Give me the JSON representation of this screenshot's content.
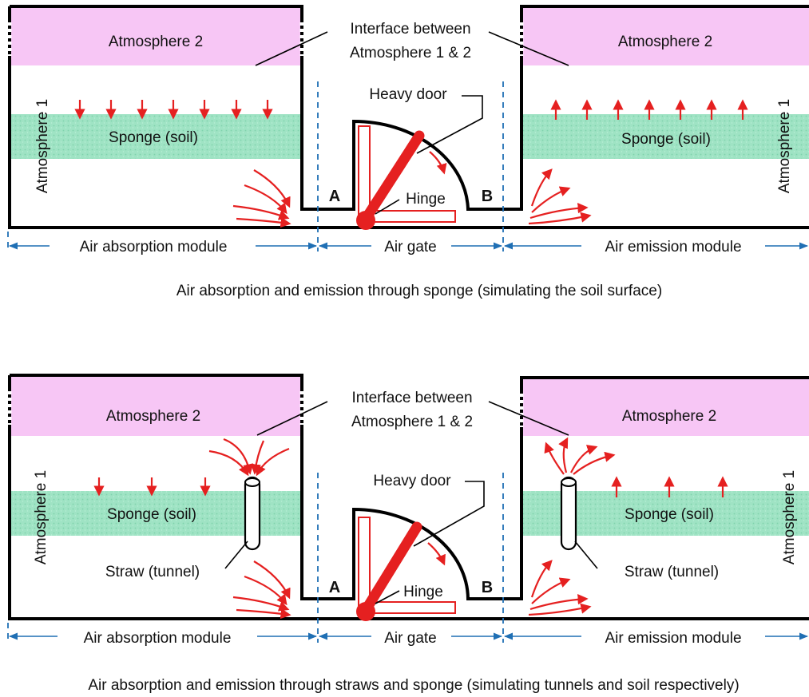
{
  "panels": [
    {
      "atmosphere2_left": "Atmosphere 2",
      "atmosphere2_right": "Atmosphere 2",
      "atmosphere1_left": "Atmosphere 1",
      "atmosphere1_right": "Atmosphere 1",
      "sponge_left": "Sponge (soil)",
      "sponge_right": "Sponge (soil)",
      "interface_line1": "Interface between",
      "interface_line2": "Atmosphere 1 & 2",
      "heavy_door": "Heavy door",
      "hinge": "Hinge",
      "point_a": "A",
      "point_b": "B",
      "module_absorption": "Air absorption module",
      "module_gate": "Air gate",
      "module_emission": "Air emission module",
      "caption": "Air absorption and emission through sponge (simulating the soil surface)"
    },
    {
      "atmosphere2_left": "Atmosphere 2",
      "atmosphere2_right": "Atmosphere 2",
      "atmosphere1_left": "Atmosphere 1",
      "atmosphere1_right": "Atmosphere 1",
      "sponge_left": "Sponge (soil)",
      "sponge_right": "Sponge (soil)",
      "straw_left": "Straw (tunnel)",
      "straw_right": "Straw (tunnel)",
      "interface_line1": "Interface between",
      "interface_line2": "Atmosphere 1 & 2",
      "heavy_door": "Heavy door",
      "hinge": "Hinge",
      "point_a": "A",
      "point_b": "B",
      "module_absorption": "Air absorption module",
      "module_gate": "Air gate",
      "module_emission": "Air emission module",
      "caption": "Air absorption and emission through straws and sponge (simulating tunnels and soil respectively)"
    }
  ],
  "colors": {
    "atmosphere2_fill": "#f7c6f5",
    "sponge_fill": "#9fe3c4",
    "flow_arrow": "#e52020",
    "dimension_line": "#1f6fb4",
    "wall": "#000000"
  }
}
